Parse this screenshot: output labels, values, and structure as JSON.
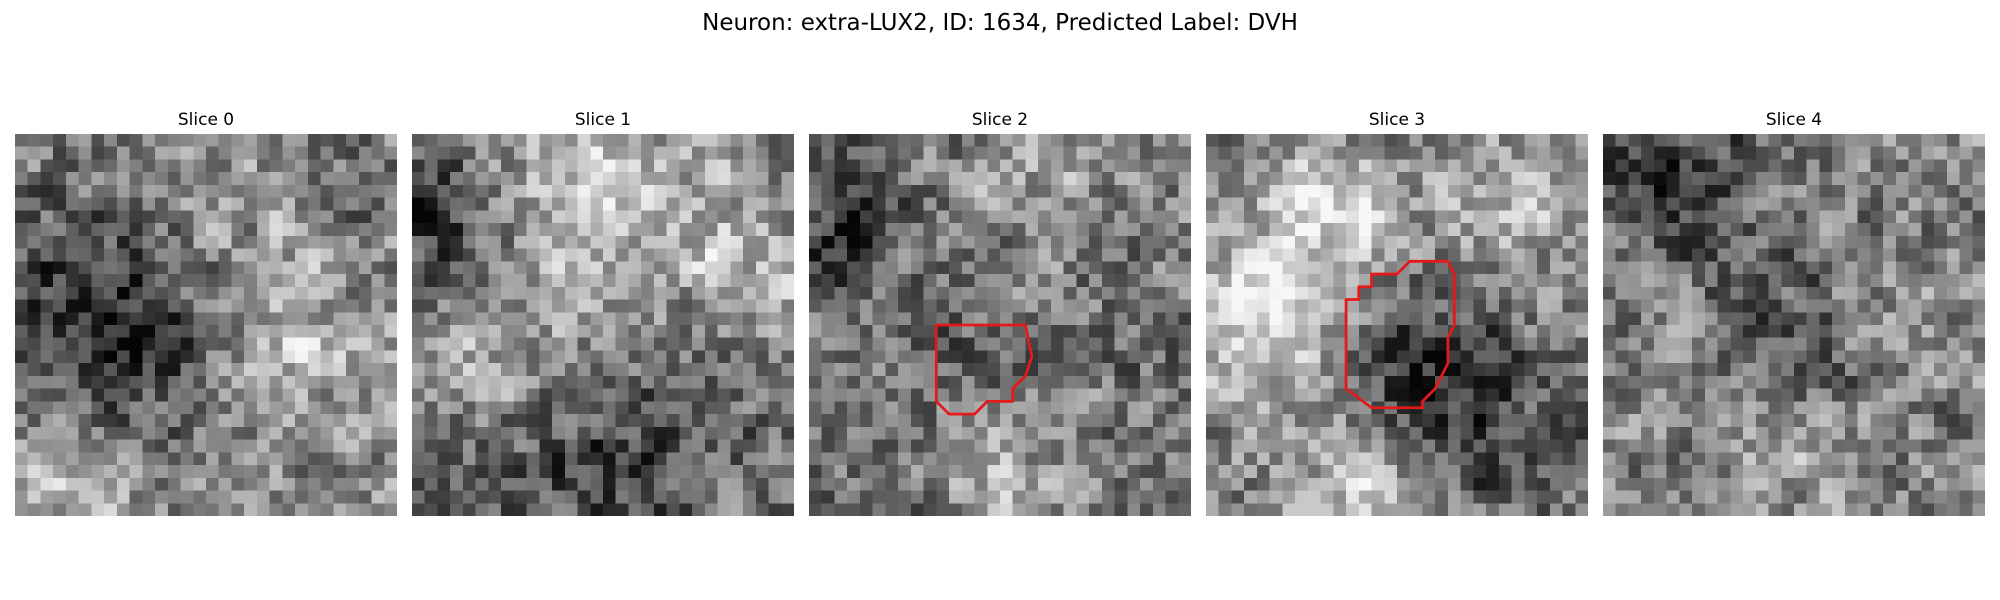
{
  "figure": {
    "title": "Neuron: extra-LUX2, ID: 1634, Predicted Label: DVH"
  },
  "colors": {
    "background": "#ffffff",
    "roi_outline": "#e31a1c"
  },
  "panels": [
    {
      "label": "Slice 0",
      "seed": 11,
      "base": 0.55,
      "blobs": [
        {
          "cx": 7,
          "cy": 14,
          "r": 7,
          "a": -0.45
        },
        {
          "cx": 14,
          "cy": 8,
          "r": 5,
          "a": 0.15
        },
        {
          "cx": 22,
          "cy": 16,
          "r": 4,
          "a": 0.2
        },
        {
          "cx": 26,
          "cy": 4,
          "r": 3,
          "a": -0.15
        },
        {
          "cx": 3,
          "cy": 27,
          "r": 4,
          "a": 0.25
        }
      ],
      "roi": []
    },
    {
      "label": "Slice 1",
      "seed": 23,
      "base": 0.5,
      "blobs": [
        {
          "cx": 13,
          "cy": 6,
          "r": 8,
          "a": 0.3
        },
        {
          "cx": 2,
          "cy": 6,
          "r": 4,
          "a": -0.4
        },
        {
          "cx": 14,
          "cy": 24,
          "r": 9,
          "a": -0.25
        },
        {
          "cx": 26,
          "cy": 10,
          "r": 4,
          "a": 0.2
        },
        {
          "cx": 6,
          "cy": 18,
          "r": 4,
          "a": 0.2
        }
      ],
      "roi": []
    },
    {
      "label": "Slice 2",
      "seed": 37,
      "base": 0.45,
      "blobs": [
        {
          "cx": 14,
          "cy": 17,
          "r": 4,
          "a": -0.05
        },
        {
          "cx": 14,
          "cy": 26,
          "r": 3,
          "a": 0.25
        },
        {
          "cx": 18,
          "cy": 3,
          "r": 4,
          "a": 0.2
        },
        {
          "cx": 2,
          "cy": 8,
          "r": 3,
          "a": -0.3
        }
      ],
      "roi": [
        [
          10,
          15
        ],
        [
          17,
          15
        ],
        [
          17.5,
          17.5
        ],
        [
          17,
          19
        ],
        [
          16,
          20
        ],
        [
          16,
          21
        ],
        [
          14,
          21
        ],
        [
          13,
          22
        ],
        [
          11,
          22
        ],
        [
          10,
          21
        ],
        [
          10,
          16
        ]
      ]
    },
    {
      "label": "Slice 3",
      "seed": 53,
      "base": 0.5,
      "blobs": [
        {
          "cx": 5,
          "cy": 14,
          "r": 5,
          "a": 0.4
        },
        {
          "cx": 9,
          "cy": 5,
          "r": 4,
          "a": 0.3
        },
        {
          "cx": 15,
          "cy": 17,
          "r": 5,
          "a": -0.25
        },
        {
          "cx": 12,
          "cy": 27,
          "r": 3,
          "a": 0.3
        },
        {
          "cx": 22,
          "cy": 22,
          "r": 5,
          "a": -0.2
        },
        {
          "cx": 23,
          "cy": 5,
          "r": 4,
          "a": 0.2
        }
      ],
      "roi": [
        [
          11,
          13
        ],
        [
          12,
          13
        ],
        [
          12,
          12
        ],
        [
          13,
          12
        ],
        [
          13,
          11
        ],
        [
          15,
          11
        ],
        [
          16,
          10
        ],
        [
          19,
          10
        ],
        [
          19.5,
          11
        ],
        [
          19.5,
          15
        ],
        [
          19,
          16
        ],
        [
          19,
          18
        ],
        [
          18,
          20
        ],
        [
          17,
          21
        ],
        [
          17,
          21.5
        ],
        [
          13,
          21.5
        ],
        [
          11,
          20
        ],
        [
          11,
          14
        ]
      ]
    },
    {
      "label": "Slice 4",
      "seed": 71,
      "base": 0.5,
      "blobs": [
        {
          "cx": 6,
          "cy": 3,
          "r": 5,
          "a": -0.25
        },
        {
          "cx": 15,
          "cy": 16,
          "r": 4,
          "a": -0.2
        },
        {
          "cx": 25,
          "cy": 14,
          "r": 4,
          "a": 0.1
        },
        {
          "cx": 14,
          "cy": 25,
          "r": 4,
          "a": 0.15
        }
      ],
      "roi": []
    }
  ]
}
